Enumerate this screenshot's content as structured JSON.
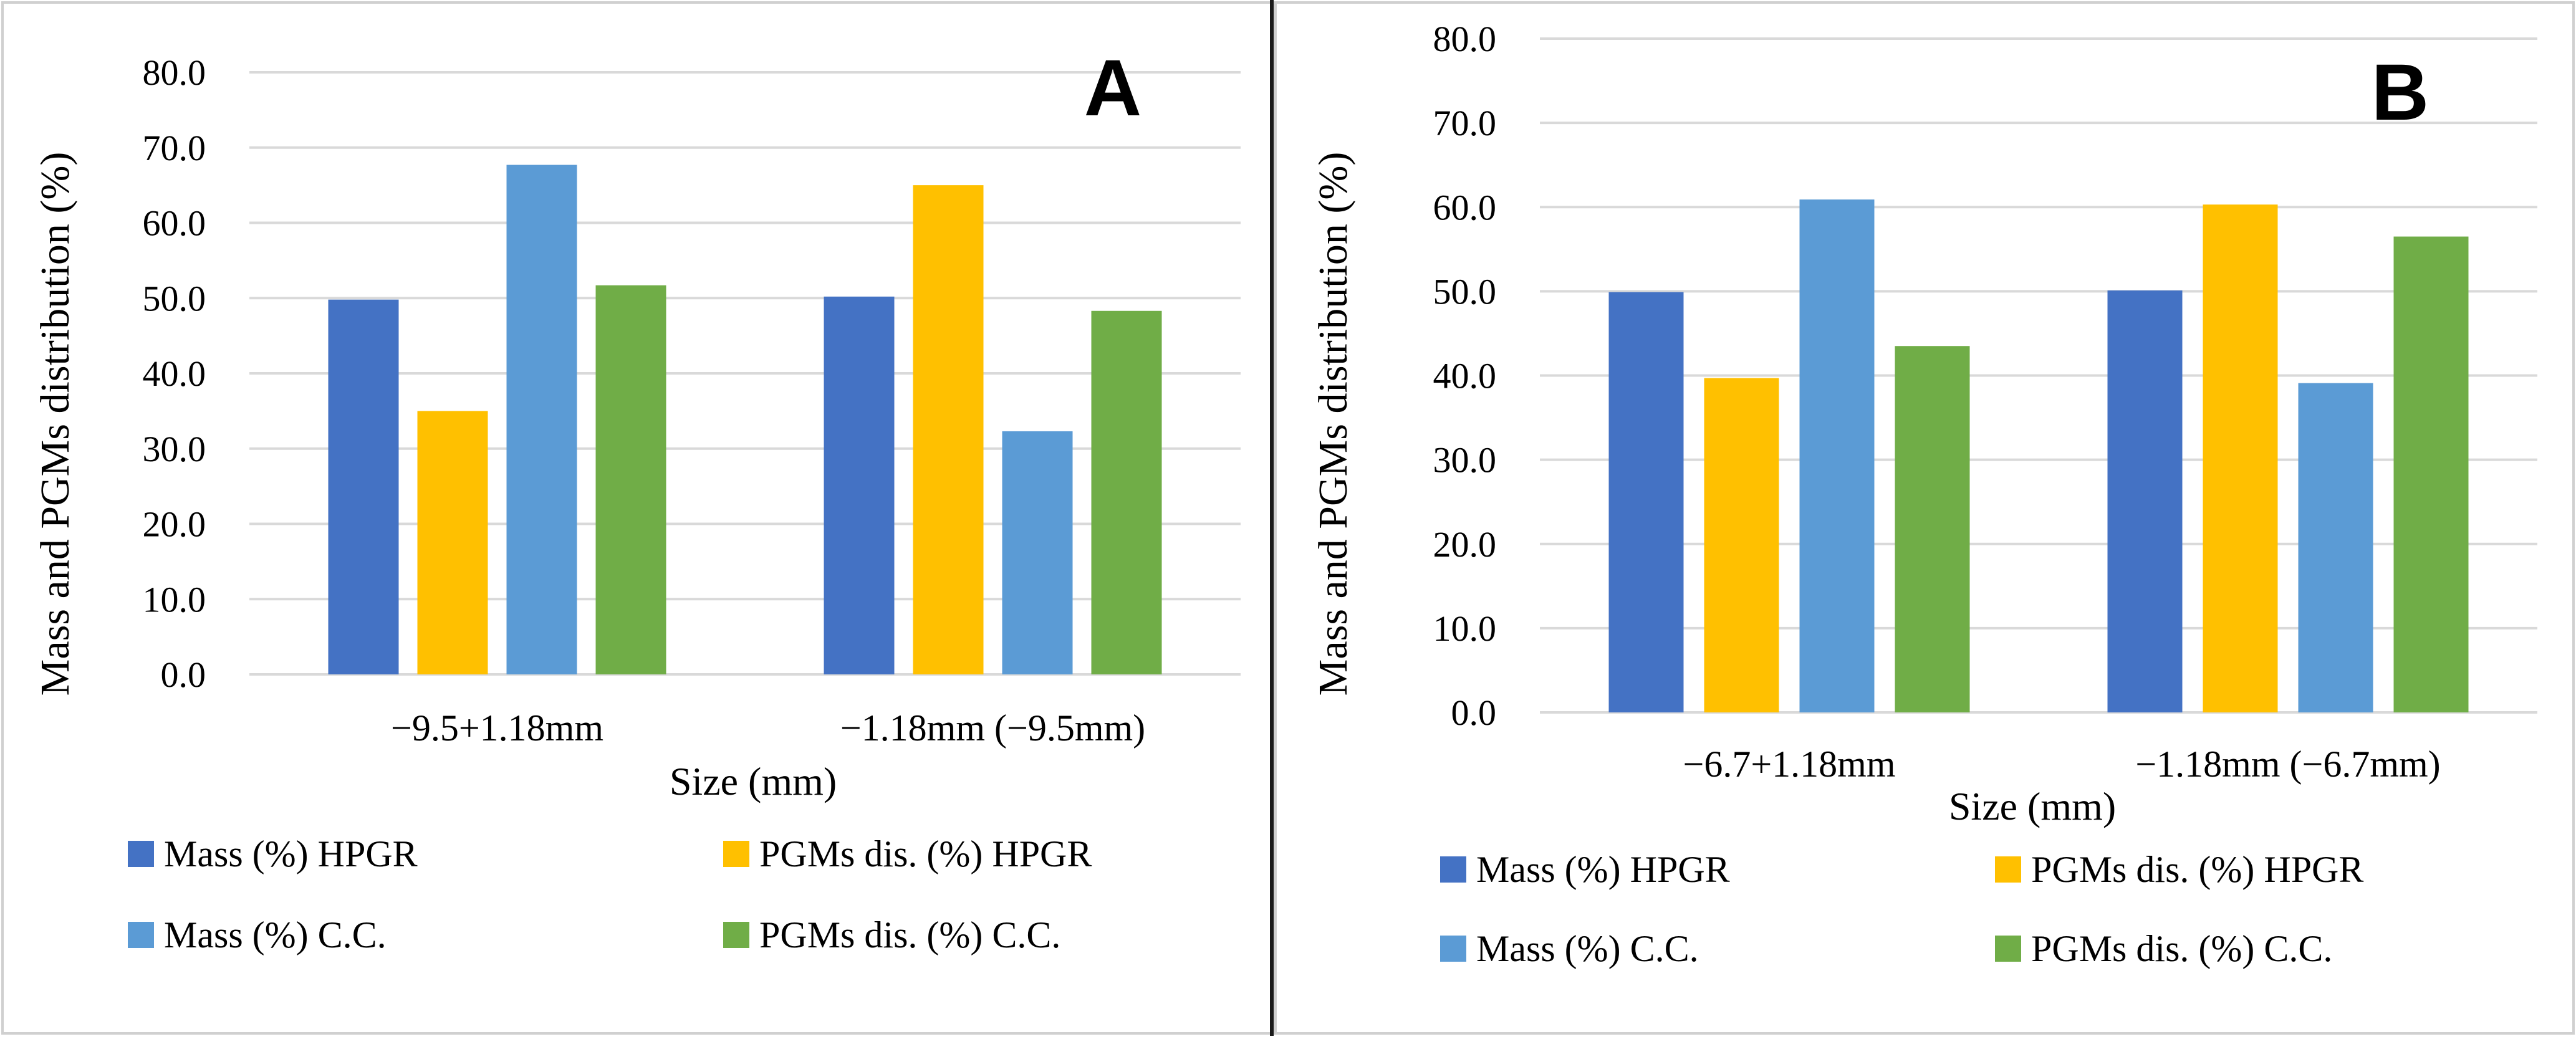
{
  "chart_data": [
    {
      "type": "bar",
      "panel_label": "A",
      "title": "",
      "xlabel": "Size (mm)",
      "ylabel": "Mass and PGMs distribution (%)",
      "ylim": [
        0,
        80
      ],
      "ytick_step": 10,
      "ytick_labels": [
        "0.0",
        "10.0",
        "20.0",
        "30.0",
        "40.0",
        "50.0",
        "60.0",
        "70.0",
        "80.0"
      ],
      "grid": true,
      "legend_position": "bottom",
      "categories": [
        "−9.5+1.18mm",
        "−1.18mm (−9.5mm)"
      ],
      "series": [
        {
          "name": "Mass (%) HPGR",
          "color": "#4472C4",
          "values": [
            49.8,
            50.2
          ]
        },
        {
          "name": "PGMs dis. (%) HPGR",
          "color": "#FFC000",
          "values": [
            35.0,
            65.0
          ]
        },
        {
          "name": "Mass (%) C.C.",
          "color": "#5B9BD5",
          "values": [
            67.7,
            32.3
          ]
        },
        {
          "name": "PGMs dis. (%) C.C.",
          "color": "#70AD47",
          "values": [
            51.7,
            48.3
          ]
        }
      ]
    },
    {
      "type": "bar",
      "panel_label": "B",
      "title": "",
      "xlabel": "Size (mm)",
      "ylabel": "Mass and PGMs distribution (%)",
      "ylim": [
        0,
        80
      ],
      "ytick_step": 10,
      "ytick_labels": [
        "0.0",
        "10.0",
        "20.0",
        "30.0",
        "40.0",
        "50.0",
        "60.0",
        "70.0",
        "80.0"
      ],
      "grid": true,
      "legend_position": "bottom",
      "categories": [
        "−6.7+1.18mm",
        "−1.18mm (−6.7mm)"
      ],
      "series": [
        {
          "name": "Mass (%) HPGR",
          "color": "#4472C4",
          "values": [
            49.9,
            50.1
          ]
        },
        {
          "name": "PGMs dis. (%) HPGR",
          "color": "#FFC000",
          "values": [
            39.7,
            60.3
          ]
        },
        {
          "name": "Mass (%) C.C.",
          "color": "#5B9BD5",
          "values": [
            60.9,
            39.1
          ]
        },
        {
          "name": "PGMs dis. (%) C.C.",
          "color": "#70AD47",
          "values": [
            43.5,
            56.5
          ]
        }
      ]
    }
  ]
}
